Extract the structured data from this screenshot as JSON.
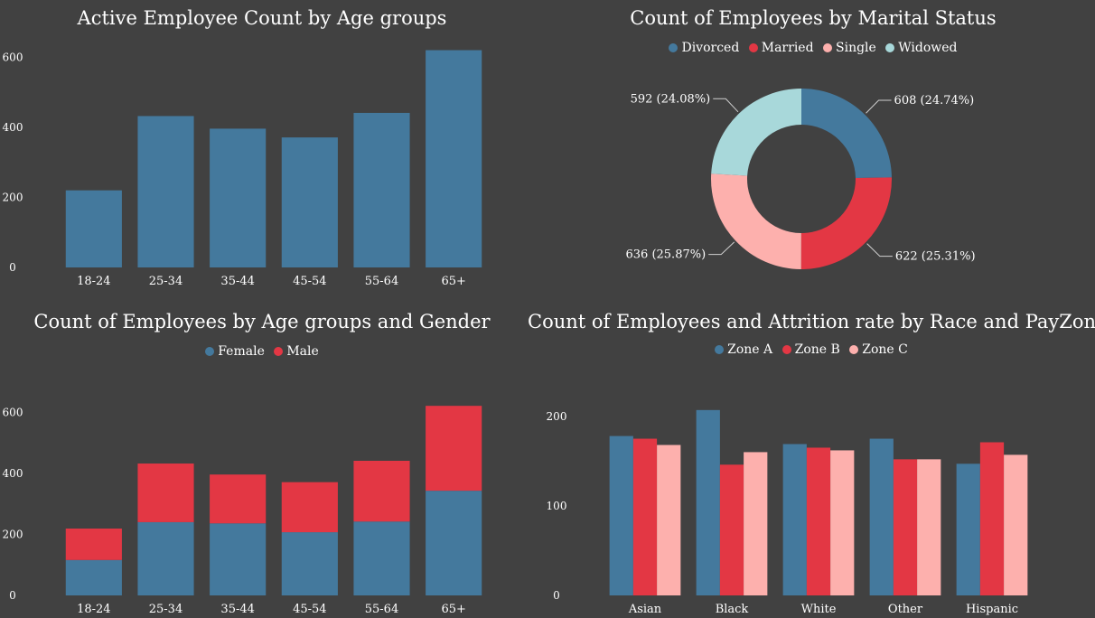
{
  "colors": {
    "background": "#414141",
    "blue": "#44799d",
    "red": "#e33744",
    "pink": "#fdb0ad",
    "teal": "#a8d8da",
    "text": "#ffffff"
  },
  "chart_data": [
    {
      "id": "age",
      "type": "bar",
      "title": "Active Employee Count by Age groups",
      "categories": [
        "18-24",
        "25-34",
        "35-44",
        "45-54",
        "55-64",
        "65+"
      ],
      "values": [
        220,
        432,
        396,
        371,
        441,
        620
      ],
      "yticks": [
        0,
        200,
        400,
        600
      ],
      "ylim": [
        0,
        660
      ],
      "grid": false
    },
    {
      "id": "marital",
      "type": "pie",
      "title": "Count of Employees by Marital Status",
      "legend": [
        "Divorced",
        "Married",
        "Single",
        "Widowed"
      ],
      "values": [
        608,
        622,
        636,
        592
      ],
      "labels": [
        "608 (24.74%)",
        "622 (25.31%)",
        "636 (25.87%)",
        "592 (24.08%)"
      ],
      "legend_position": "top"
    },
    {
      "id": "age_gender",
      "type": "bar",
      "stacked": true,
      "title": "Count of Employees by Age groups and Gender",
      "categories": [
        "18-24",
        "25-34",
        "35-44",
        "45-54",
        "55-64",
        "65+"
      ],
      "series": [
        {
          "name": "Female",
          "values": [
            116,
            240,
            236,
            207,
            242,
            343
          ]
        },
        {
          "name": "Male",
          "values": [
            103,
            192,
            160,
            164,
            199,
            278
          ]
        }
      ],
      "yticks": [
        0,
        200,
        400,
        600
      ],
      "ylim": [
        0,
        660
      ],
      "legend_position": "top"
    },
    {
      "id": "race_payzone",
      "type": "bar",
      "title": "Count of Employees and Attrition rate by Race and PayZone",
      "categories": [
        "Asian",
        "Black",
        "White",
        "Other",
        "Hispanic"
      ],
      "series": [
        {
          "name": "Zone A",
          "values": [
            178,
            207,
            169,
            175,
            147
          ]
        },
        {
          "name": "Zone B",
          "values": [
            175,
            146,
            165,
            152,
            171
          ]
        },
        {
          "name": "Zone C",
          "values": [
            168,
            160,
            162,
            152,
            157
          ]
        }
      ],
      "yticks": [
        0,
        100,
        200
      ],
      "ylim": [
        0,
        225
      ],
      "legend_position": "top"
    }
  ]
}
